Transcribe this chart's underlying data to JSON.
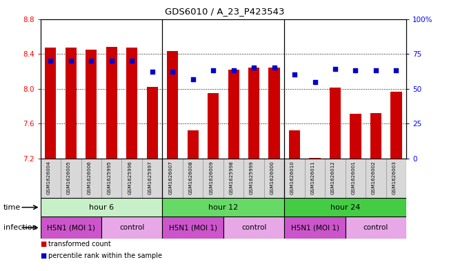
{
  "title": "GDS6010 / A_23_P423543",
  "samples": [
    "GSM1626004",
    "GSM1626005",
    "GSM1626006",
    "GSM1625995",
    "GSM1625996",
    "GSM1625997",
    "GSM1626007",
    "GSM1626008",
    "GSM1626009",
    "GSM1625998",
    "GSM1625999",
    "GSM1626000",
    "GSM1626010",
    "GSM1626011",
    "GSM1626012",
    "GSM1626001",
    "GSM1626002",
    "GSM1626003"
  ],
  "bar_values": [
    8.47,
    8.47,
    8.45,
    8.48,
    8.47,
    8.02,
    8.43,
    7.52,
    7.95,
    8.22,
    8.24,
    8.24,
    7.52,
    7.21,
    8.01,
    7.71,
    7.72,
    7.97
  ],
  "blue_values": [
    70,
    70,
    70,
    70,
    70,
    62,
    62,
    57,
    63,
    63,
    65,
    65,
    60,
    55,
    64,
    63,
    63,
    63
  ],
  "ylim_left": [
    7.2,
    8.8
  ],
  "ylim_right": [
    0,
    100
  ],
  "yticks_left": [
    7.2,
    7.6,
    8.0,
    8.4,
    8.8
  ],
  "yticks_right": [
    0,
    25,
    50,
    75,
    100
  ],
  "bar_color": "#cc0000",
  "blue_color": "#0000cc",
  "bar_bottom": 7.2,
  "time_groups": [
    {
      "label": "hour 6",
      "start": 0,
      "end": 6,
      "color": "#c8f0c8"
    },
    {
      "label": "hour 12",
      "start": 6,
      "end": 12,
      "color": "#66d966"
    },
    {
      "label": "hour 24",
      "start": 12,
      "end": 18,
      "color": "#44cc44"
    }
  ],
  "infection_groups": [
    {
      "label": "H5N1 (MOI 1)",
      "start": 0,
      "end": 3,
      "color": "#cc55cc"
    },
    {
      "label": "control",
      "start": 3,
      "end": 6,
      "color": "#e8a8e8"
    },
    {
      "label": "H5N1 (MOI 1)",
      "start": 6,
      "end": 9,
      "color": "#cc55cc"
    },
    {
      "label": "control",
      "start": 9,
      "end": 12,
      "color": "#e8a8e8"
    },
    {
      "label": "H5N1 (MOI 1)",
      "start": 12,
      "end": 15,
      "color": "#cc55cc"
    },
    {
      "label": "control",
      "start": 15,
      "end": 18,
      "color": "#e8a8e8"
    }
  ],
  "legend_red": "transformed count",
  "legend_blue": "percentile rank within the sample",
  "label_time": "time",
  "label_infection": "infection"
}
